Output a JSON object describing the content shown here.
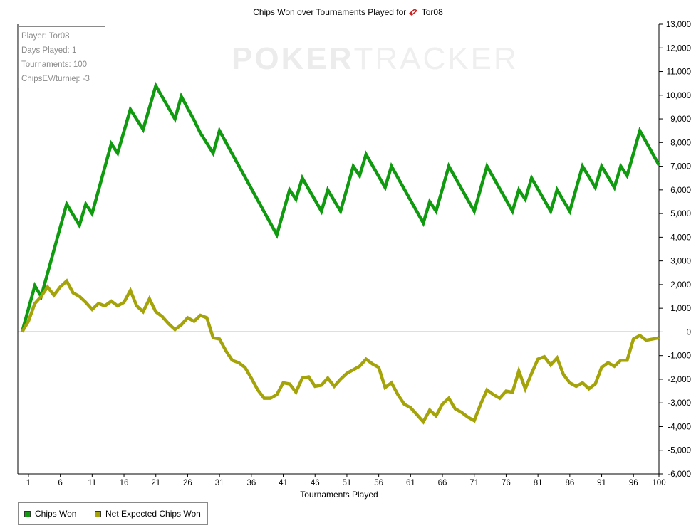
{
  "chart_title": "Chips Won over Tournaments Played for",
  "player_name": "Tor08",
  "watermark": {
    "part1": "POKER",
    "part2": "TRACKER"
  },
  "stats": {
    "player": "Player: Tor08",
    "days": "Days Played: 1",
    "tournaments": "Tournaments: 100",
    "chipsev": "ChipsEV/turniej: -3"
  },
  "legend": {
    "chips_won": "Chips Won",
    "net_expected": "Net Expected Chips Won"
  },
  "colors": {
    "chips_won": "#0f9a0f",
    "net_expected": "#a4a40a",
    "axis": "#000000"
  },
  "chart_data": {
    "type": "line",
    "xlabel": "Tournaments Played",
    "ylabel": "",
    "xlim": [
      0,
      100
    ],
    "ylim": [
      -6000,
      13000
    ],
    "x_ticks": [
      1,
      6,
      11,
      16,
      21,
      26,
      31,
      36,
      41,
      46,
      51,
      56,
      61,
      66,
      71,
      76,
      81,
      86,
      91,
      96,
      100
    ],
    "y_ticks": [
      13000,
      12000,
      11000,
      10000,
      9000,
      8000,
      7000,
      6000,
      5000,
      4000,
      3000,
      2000,
      1000,
      0,
      -1000,
      -2000,
      -3000,
      -4000,
      -5000,
      -6000
    ],
    "y_tick_labels": [
      "13,000",
      "12,000",
      "11,000",
      "10,000",
      "9,000",
      "8,000",
      "7,000",
      "6,000",
      "5,000",
      "4,000",
      "3,000",
      "2,000",
      "1,000",
      "0",
      "-1,000",
      "-2,000",
      "-3,000",
      "-4,000",
      "-5,000",
      "-6,000"
    ],
    "series": [
      {
        "name": "Chips Won",
        "color": "#0f9a0f",
        "x": [
          0,
          2,
          3,
          7,
          9,
          10,
          11,
          14,
          15,
          17,
          19,
          21,
          24,
          25,
          27,
          28,
          30,
          31,
          40,
          42,
          43,
          44,
          47,
          48,
          50,
          52,
          53,
          54,
          57,
          58,
          63,
          64,
          65,
          67,
          71,
          73,
          77,
          78,
          79,
          80,
          83,
          84,
          86,
          88,
          90,
          91,
          93,
          94,
          95,
          97,
          100
        ],
        "values": [
          0,
          1950,
          1500,
          5400,
          4500,
          5400,
          5000,
          7950,
          7550,
          9400,
          8550,
          10400,
          9000,
          9950,
          8950,
          8400,
          7550,
          8500,
          4100,
          6000,
          5600,
          6500,
          5100,
          6000,
          5100,
          7000,
          6600,
          7500,
          6100,
          7000,
          4600,
          5500,
          5100,
          7000,
          5100,
          7000,
          5100,
          6000,
          5600,
          6500,
          5100,
          6000,
          5100,
          7000,
          6100,
          7000,
          6100,
          7000,
          6600,
          8500,
          7050
        ]
      },
      {
        "name": "Net Expected Chips Won",
        "color": "#a4a40a",
        "x": [
          0,
          1,
          2,
          3,
          4,
          5,
          6,
          7,
          8,
          9,
          10,
          11,
          12,
          13,
          14,
          15,
          16,
          17,
          18,
          19,
          20,
          21,
          22,
          23,
          24,
          25,
          26,
          27,
          28,
          29,
          30,
          31,
          32,
          33,
          34,
          35,
          36,
          37,
          38,
          39,
          40,
          41,
          42,
          43,
          44,
          45,
          46,
          47,
          48,
          49,
          50,
          51,
          52,
          53,
          54,
          55,
          56,
          57,
          58,
          59,
          60,
          61,
          62,
          63,
          64,
          65,
          66,
          67,
          68,
          69,
          70,
          71,
          72,
          73,
          74,
          75,
          76,
          77,
          78,
          79,
          80,
          81,
          82,
          83,
          84,
          85,
          86,
          87,
          88,
          89,
          90,
          91,
          92,
          93,
          94,
          95,
          96,
          97,
          98,
          99,
          100
        ],
        "values": [
          0,
          450,
          1200,
          1500,
          1900,
          1550,
          1900,
          2150,
          1650,
          1500,
          1250,
          950,
          1200,
          1100,
          1300,
          1100,
          1250,
          1750,
          1100,
          850,
          1400,
          850,
          650,
          350,
          100,
          300,
          600,
          450,
          700,
          600,
          -250,
          -300,
          -800,
          -1200,
          -1300,
          -1500,
          -1950,
          -2450,
          -2800,
          -2800,
          -2650,
          -2150,
          -2200,
          -2550,
          -1950,
          -1900,
          -2300,
          -2250,
          -1950,
          -2300,
          -2000,
          -1750,
          -1600,
          -1450,
          -1150,
          -1350,
          -1500,
          -2350,
          -2150,
          -2650,
          -3050,
          -3200,
          -3500,
          -3800,
          -3300,
          -3550,
          -3050,
          -2800,
          -3250,
          -3400,
          -3600,
          -3750,
          -3050,
          -2450,
          -2650,
          -2800,
          -2500,
          -2550,
          -1650,
          -2400,
          -1750,
          -1150,
          -1050,
          -1400,
          -1100,
          -1800,
          -2150,
          -2300,
          -2150,
          -2400,
          -2200,
          -1500,
          -1300,
          -1450,
          -1200,
          -1200,
          -300,
          -150,
          -350,
          -300,
          -250
        ]
      }
    ]
  }
}
